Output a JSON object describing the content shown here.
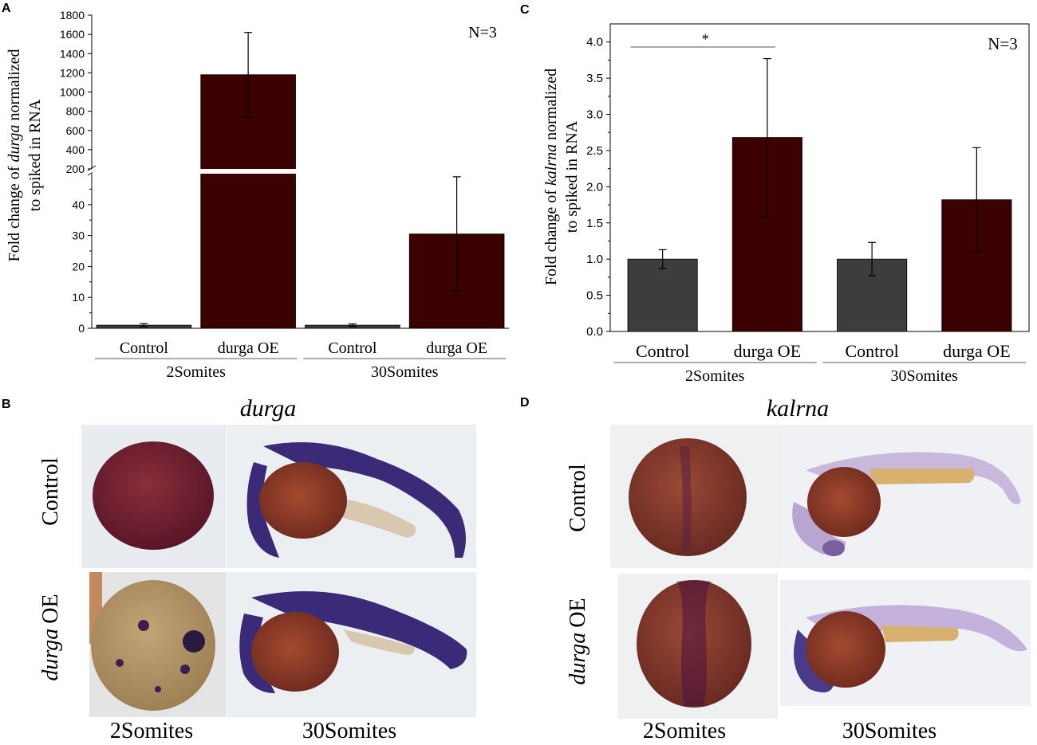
{
  "panels": {
    "A": "A",
    "B": "B",
    "C": "C",
    "D": "D"
  },
  "chart_data": [
    {
      "panel": "A",
      "type": "bar",
      "ylabel_parts": [
        "Fold change of ",
        "durga",
        " normalized"
      ],
      "ylabel_line2": "to spiked in RNA",
      "annotation": "N=3",
      "categories": [
        "Control",
        "durga OE",
        "Control",
        "durga OE"
      ],
      "groups": [
        {
          "label": "2Somites",
          "categories": [
            0,
            1
          ]
        },
        {
          "label": "30Somites",
          "categories": [
            2,
            3
          ]
        }
      ],
      "values": [
        1,
        1180,
        1,
        30.5
      ],
      "errors": [
        0.5,
        440,
        0.4,
        18.5
      ],
      "bar_colors": [
        "#3d3d3d",
        "#3b0000",
        "#3d3d3d",
        "#3b0000"
      ],
      "axis_break": {
        "lower": [
          0,
          50
        ],
        "upper": [
          200,
          1800
        ]
      },
      "lower_ticks": [
        0,
        10,
        20,
        30,
        40
      ],
      "upper_ticks": [
        200,
        400,
        600,
        800,
        1000,
        1200,
        1400,
        1600,
        1800
      ]
    },
    {
      "panel": "C",
      "type": "bar",
      "ylabel_parts": [
        "Fold change of ",
        "kalrna",
        " normalized"
      ],
      "ylabel_line2": "to spiked in RNA",
      "annotation": "N=3",
      "significance": "*",
      "categories": [
        "Control",
        "durga OE",
        "Control",
        "durga OE"
      ],
      "groups": [
        {
          "label": "2Somites",
          "categories": [
            0,
            1
          ]
        },
        {
          "label": "30Somites",
          "categories": [
            2,
            3
          ]
        }
      ],
      "values": [
        1.0,
        2.68,
        1.0,
        1.82
      ],
      "errors": [
        0.13,
        1.09,
        0.23,
        0.72
      ],
      "bar_colors": [
        "#3d3d3d",
        "#3b0000",
        "#3d3d3d",
        "#3b0000"
      ],
      "ylim": [
        0,
        4.25
      ],
      "ticks": [
        "0.0",
        "0.5",
        "1.0",
        "1.5",
        "2.0",
        "2.5",
        "3.0",
        "3.5",
        "4.0"
      ]
    }
  ],
  "images": {
    "B": {
      "title": "durga",
      "rows": [
        "Control",
        "OE"
      ],
      "row2_italic": "durga",
      "cols": [
        "2Somites",
        "30Somites"
      ]
    },
    "D": {
      "title": "kalrna",
      "rows": [
        "Control",
        "OE"
      ],
      "row2_italic": "durga",
      "cols": [
        "2Somites",
        "30Somites"
      ]
    }
  }
}
